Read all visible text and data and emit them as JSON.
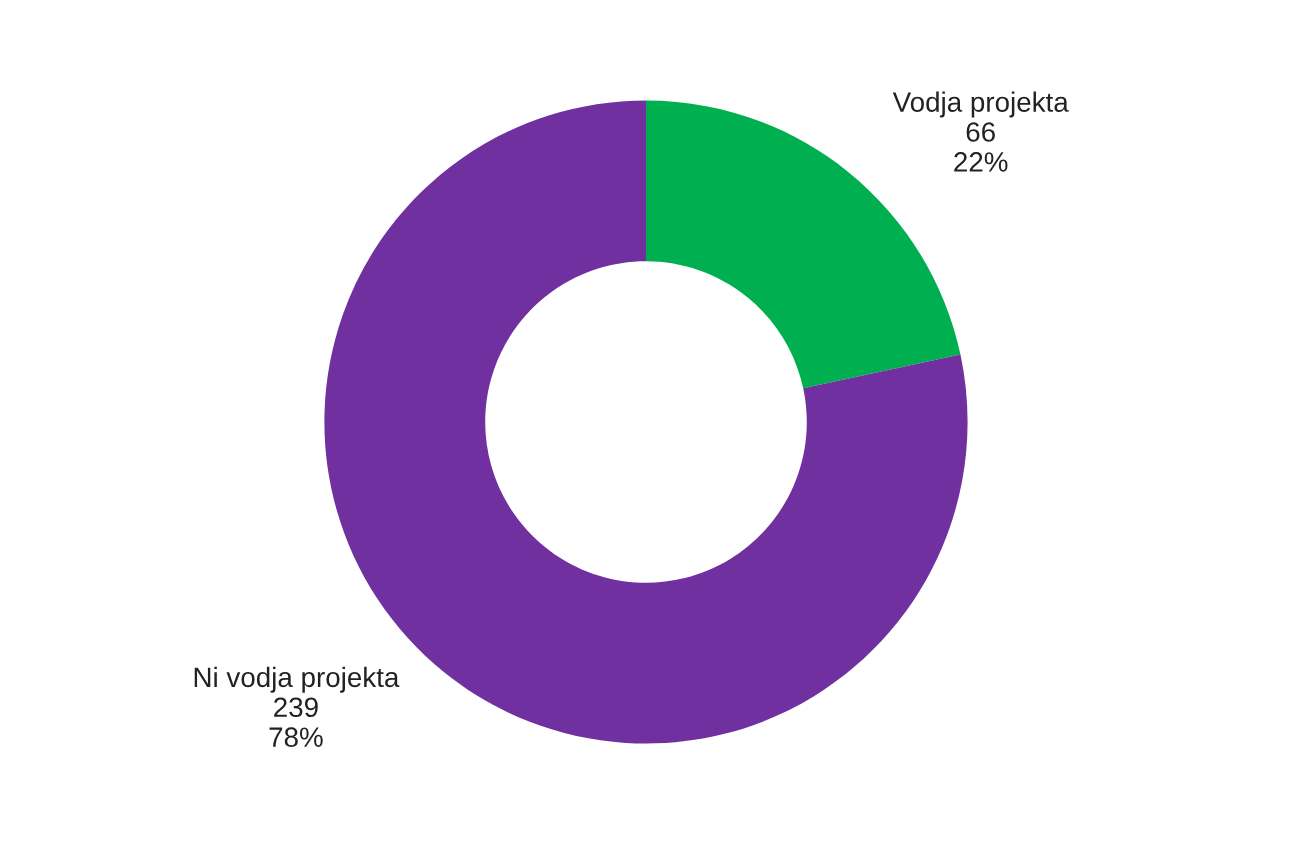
{
  "chart_data": {
    "type": "donut",
    "categories": [
      "Vodja projekta",
      "Ni vodja projekta"
    ],
    "values": [
      66,
      239
    ],
    "value_labels": [
      "66\n22%",
      "239\n78%"
    ],
    "colors": [
      "#00b050",
      "#7030a0"
    ]
  }
}
